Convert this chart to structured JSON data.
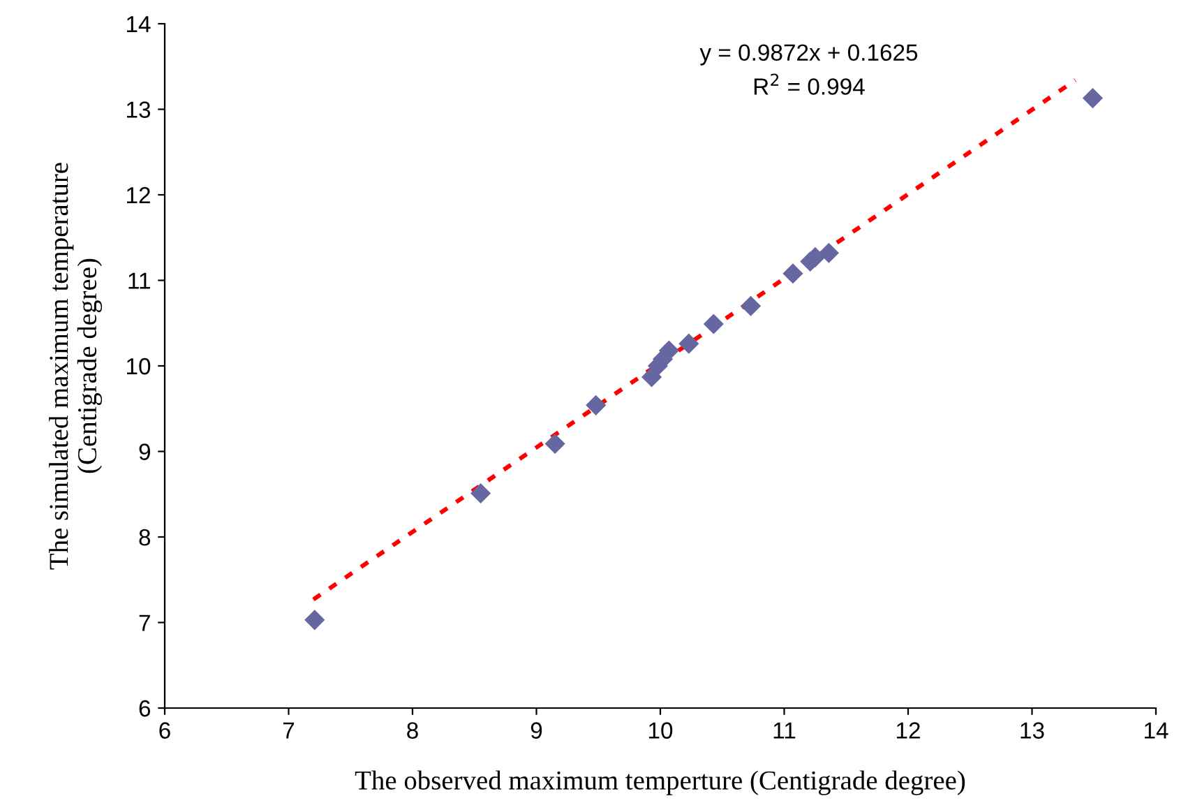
{
  "chart_data": {
    "type": "scatter",
    "xlabel": "The observed maximum temperture (Centigrade degree)",
    "ylabel": "The simulated maximum temperature\n(Centigrade degree)",
    "xlim": [
      6,
      14
    ],
    "xticks": [
      6,
      7,
      8,
      9,
      10,
      11,
      12,
      13,
      14
    ],
    "ylim": [
      6,
      14
    ],
    "yticks": [
      6,
      7,
      8,
      9,
      10,
      11,
      12,
      13,
      14
    ],
    "grid": false,
    "legend": false,
    "annotations": [
      "y = 0.9872x + 0.1625",
      "R$^{2}$ = 0.994"
    ],
    "series": [
      {
        "color": "#6666a0",
        "marker": "diamond",
        "x": [
          7.21,
          8.55,
          9.15,
          9.48,
          9.93,
          9.98,
          10.02,
          10.07,
          10.23,
          10.43,
          10.73,
          11.07,
          11.21,
          11.25,
          11.36,
          13.49
        ],
        "values": [
          7.03,
          8.51,
          9.09,
          9.54,
          9.87,
          10.0,
          10.08,
          10.18,
          10.26,
          10.49,
          10.7,
          11.08,
          11.22,
          11.27,
          11.32,
          13.13
        ]
      },
      {
        "type": "line",
        "color": "#ff0000",
        "line_style": "dotted",
        "marker": "none",
        "x": [
          7.2,
          13.35
        ],
        "values": [
          7.27,
          13.34
        ]
      }
    ]
  }
}
